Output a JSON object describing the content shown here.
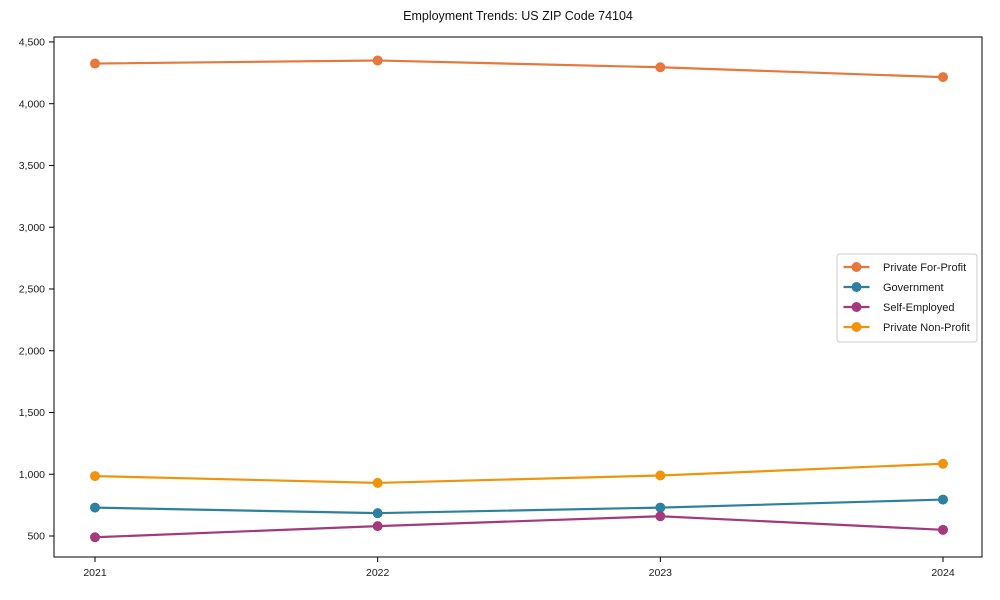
{
  "figure": {
    "title": "Employment Trends: US ZIP Code 74104"
  },
  "chart_data": {
    "type": "line",
    "title": "Employment Trends: US ZIP Code 74104",
    "x": [
      "2021",
      "2022",
      "2023",
      "2024"
    ],
    "series": [
      {
        "name": "Private For-Profit",
        "color": "#e6783c",
        "values": [
          4325,
          4350,
          4295,
          4215
        ]
      },
      {
        "name": "Government",
        "color": "#2e80a0",
        "values": [
          730,
          685,
          730,
          795
        ]
      },
      {
        "name": "Self-Employed",
        "color": "#a23a7c",
        "values": [
          490,
          580,
          660,
          550
        ]
      },
      {
        "name": "Private Non-Profit",
        "color": "#f0940b",
        "values": [
          985,
          930,
          990,
          1085
        ]
      }
    ],
    "xlabel": "",
    "ylabel": "",
    "ylim": [
      330,
      4540
    ],
    "yticks": [
      500,
      1000,
      1500,
      2000,
      2500,
      3000,
      3500,
      4000,
      4500
    ],
    "grid": false,
    "legend_position": "right-center",
    "axis_color": "#000000",
    "text_color": "#1a1a1a",
    "marker": "circle"
  }
}
